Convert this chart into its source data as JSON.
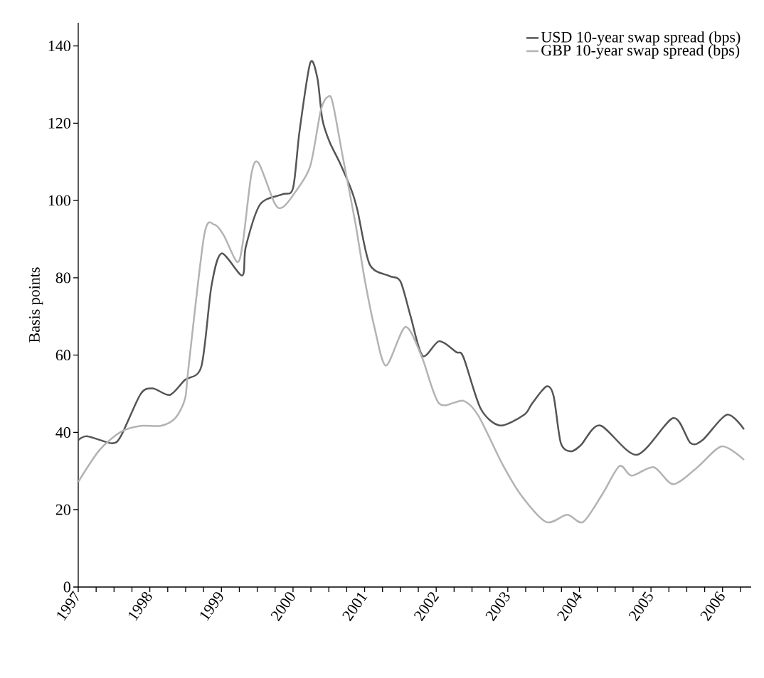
{
  "chart_data": {
    "type": "line",
    "ylabel": "Basis points",
    "series": [
      {
        "name": "USD 10-year swap spread (bps)",
        "color": "#555555",
        "x": [
          1997.0,
          1997.13,
          1997.47,
          1997.6,
          1997.87,
          1998.04,
          1998.28,
          1998.49,
          1998.72,
          1998.86,
          1999.0,
          1999.29,
          1999.34,
          1999.54,
          1999.85,
          2000.0,
          2000.09,
          2000.24,
          2000.34,
          2000.41,
          2000.51,
          2000.66,
          2000.82,
          2000.9,
          2001.07,
          2001.34,
          2001.5,
          2001.64,
          2001.81,
          2002.04,
          2002.28,
          2002.38,
          2002.62,
          2002.89,
          2003.23,
          2003.34,
          2003.54,
          2003.64,
          2003.74,
          2003.88,
          2004.02,
          2004.29,
          2004.8,
          2005.31,
          2005.55,
          2005.72,
          2006.06,
          2006.3
        ],
        "values": [
          38,
          39,
          37.2,
          39.2,
          49.9,
          51.4,
          49.7,
          53.6,
          57.1,
          77.8,
          86.3,
          80.6,
          88,
          99,
          101.6,
          103.2,
          117.8,
          135.6,
          131.7,
          121,
          115.2,
          109.5,
          102.5,
          97.5,
          83.5,
          80.5,
          79.1,
          70.2,
          59.8,
          63.6,
          60.8,
          59.5,
          46.2,
          41.8,
          44.6,
          47.5,
          51.9,
          49.4,
          37.3,
          35.1,
          36.7,
          41.8,
          34.2,
          43.7,
          37.3,
          38,
          44.6,
          40.8
        ]
      },
      {
        "name": "GBP 10-year swap spread (bps)",
        "color": "#b3b3b3",
        "x": [
          1997.0,
          1997.3,
          1997.6,
          1997.87,
          1998.15,
          1998.35,
          1998.49,
          1998.54,
          1998.76,
          1998.9,
          1999.03,
          1999.22,
          1999.3,
          1999.42,
          1999.52,
          1999.74,
          1999.85,
          2000.02,
          2000.24,
          2000.39,
          2000.5,
          2000.56,
          2000.7,
          2000.87,
          2001.0,
          2001.14,
          2001.3,
          2001.57,
          2001.8,
          2002.04,
          2002.38,
          2002.59,
          2002.93,
          2003.2,
          2003.54,
          2003.83,
          2004.05,
          2004.32,
          2004.56,
          2004.73,
          2005.04,
          2005.31,
          2005.65,
          2005.99,
          2006.3
        ],
        "values": [
          27.2,
          35.5,
          40.2,
          41.7,
          41.7,
          43.6,
          48.6,
          56.8,
          91.1,
          93.8,
          91.1,
          84.1,
          89.2,
          107,
          109.7,
          99.4,
          98.2,
          101.9,
          108.9,
          123.5,
          127,
          124.8,
          110.8,
          94.3,
          79.7,
          67,
          57.3,
          67.3,
          59.5,
          47.5,
          48.2,
          44.3,
          31.6,
          23.4,
          16.8,
          18.7,
          16.8,
          24,
          31.3,
          28.8,
          31,
          26.6,
          31,
          36.4,
          32.9
        ]
      }
    ],
    "xlim": [
      1997,
      2006.4
    ],
    "ylim": [
      0,
      146
    ],
    "xticks": [
      1997,
      {
        "value": 1997.25,
        "label": null
      },
      {
        "value": 1997.5,
        "label": null
      },
      {
        "value": 1997.75,
        "label": null
      },
      1998,
      {
        "value": 1998.25,
        "label": null
      },
      {
        "value": 1998.5,
        "label": null
      },
      {
        "value": 1998.75,
        "label": null
      },
      1999,
      {
        "value": 1999.25,
        "label": null
      },
      {
        "value": 1999.5,
        "label": null
      },
      {
        "value": 1999.75,
        "label": null
      },
      2000,
      {
        "value": 2000.25,
        "label": null
      },
      {
        "value": 2000.5,
        "label": null
      },
      {
        "value": 2000.75,
        "label": null
      },
      2001,
      {
        "value": 2001.25,
        "label": null
      },
      {
        "value": 2001.5,
        "label": null
      },
      {
        "value": 2001.75,
        "label": null
      },
      2002,
      {
        "value": 2002.25,
        "label": null
      },
      {
        "value": 2002.5,
        "label": null
      },
      {
        "value": 2002.75,
        "label": null
      },
      2003,
      {
        "value": 2003.25,
        "label": null
      },
      {
        "value": 2003.5,
        "label": null
      },
      {
        "value": 2003.75,
        "label": null
      },
      2004,
      {
        "value": 2004.25,
        "label": null
      },
      {
        "value": 2004.5,
        "label": null
      },
      {
        "value": 2004.75,
        "label": null
      },
      2005,
      {
        "value": 2005.25,
        "label": null
      },
      {
        "value": 2005.5,
        "label": null
      },
      {
        "value": 2005.75,
        "label": null
      },
      2006,
      {
        "value": 2006.25,
        "label": null
      }
    ],
    "yticks": [
      0,
      20,
      40,
      60,
      80,
      100,
      120,
      140
    ],
    "legend": "top right",
    "marker": "none",
    "line_style": "solid"
  }
}
